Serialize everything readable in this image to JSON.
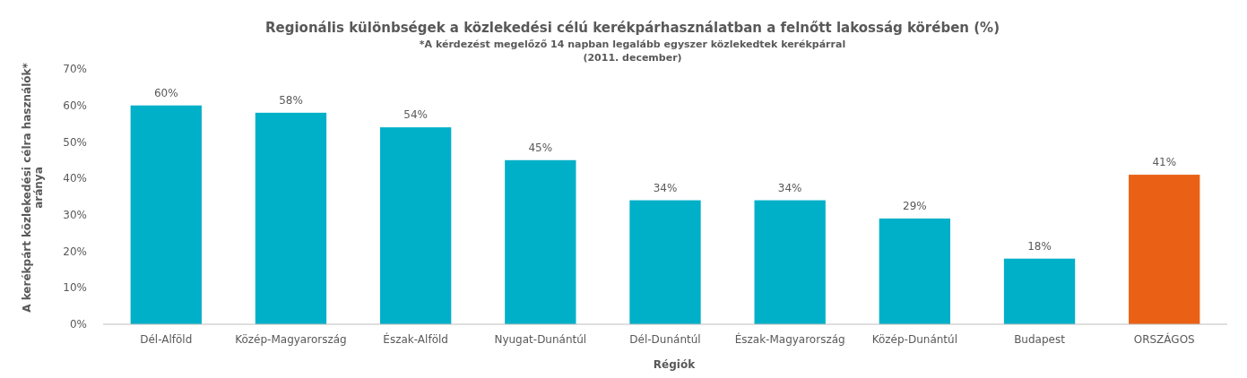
{
  "chart_data": {
    "type": "bar",
    "title": "Regionális különbségek a közlekedési célú kerékpárhasználatban a felnőtt lakosság körében (%)",
    "subtitle": "*A kérdezést megelőző 14 napban legalább egyszer közlekedtek kerékpárral\n(2011.  december)",
    "xlabel": "Régiók",
    "ylabel": "A kerékpárt közlekedési célra használók*\naránya",
    "categories": [
      "Dél-Alföld",
      "Közép-Magyarország",
      "Észak-Alföld",
      "Nyugat-Dunántúl",
      "Dél-Dunántúl",
      "Észak-Magyarország",
      "Közép-Dunántúl",
      "Budapest",
      "ORSZÁGOS"
    ],
    "values": [
      60,
      58,
      54,
      45,
      34,
      34,
      29,
      18,
      41
    ],
    "colors": [
      "#00b0c8",
      "#00b0c8",
      "#00b0c8",
      "#00b0c8",
      "#00b0c8",
      "#00b0c8",
      "#00b0c8",
      "#00b0c8",
      "#ea6115"
    ],
    "value_labels": [
      "60%",
      "58%",
      "54%",
      "45%",
      "34%",
      "34%",
      "29%",
      "18%",
      "41%"
    ],
    "ylim": [
      0,
      70
    ],
    "yticks": [
      {
        "value": 0,
        "label": "0%"
      },
      {
        "value": 10,
        "label": "10%"
      },
      {
        "value": 20,
        "label": "20%"
      },
      {
        "value": 30,
        "label": "30%"
      },
      {
        "value": 40,
        "label": "40%"
      },
      {
        "value": 50,
        "label": "50%"
      },
      {
        "value": 60,
        "label": "60%"
      },
      {
        "value": 70,
        "label": "70%"
      }
    ],
    "grid": false
  }
}
